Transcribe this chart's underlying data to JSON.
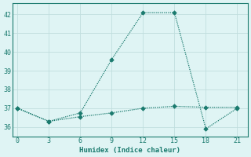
{
  "xlabel": "Humidex (Indice chaleur)",
  "line1_x": [
    0,
    3,
    6,
    9,
    12,
    15,
    18,
    21
  ],
  "line1_y": [
    37.0,
    36.3,
    36.75,
    39.6,
    42.1,
    42.1,
    35.9,
    37.0
  ],
  "line2_x": [
    0,
    3,
    6,
    9,
    12,
    15,
    18,
    21
  ],
  "line2_y": [
    37.0,
    36.3,
    36.55,
    36.75,
    37.0,
    37.1,
    37.05,
    37.05
  ],
  "xlim": [
    -0.5,
    22
  ],
  "ylim": [
    35.5,
    42.6
  ],
  "xticks": [
    0,
    3,
    6,
    9,
    12,
    15,
    18,
    21
  ],
  "yticks": [
    36,
    37,
    38,
    39,
    40,
    41,
    42
  ],
  "line_color": "#1a7a6e",
  "bg_color": "#dff4f4",
  "grid_color": "#c0dede",
  "spine_color": "#1a7a6e"
}
